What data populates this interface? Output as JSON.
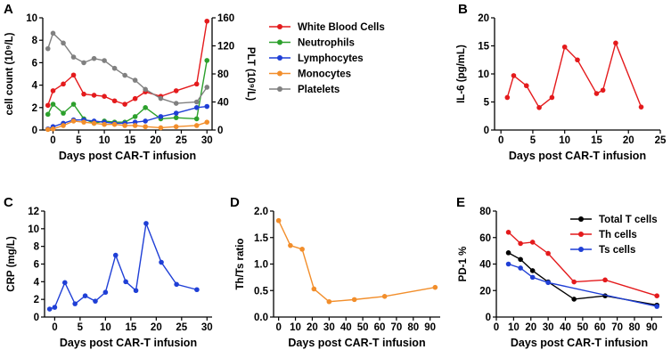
{
  "chart_data": [
    {
      "panel": "A",
      "type": "line",
      "xlabel": "Days post CAR-T infusion",
      "ylabel": "cell count (10⁹/L)",
      "ylabel_right": "PLT (10⁹/L)",
      "xlim": [
        -2,
        31
      ],
      "xticks": [
        "0",
        "5",
        "10",
        "15",
        "20",
        "25",
        "30"
      ],
      "ylim": [
        0,
        10
      ],
      "yticks": [
        "0",
        "2",
        "4",
        "6",
        "8",
        "10"
      ],
      "ylim_right": [
        0,
        160
      ],
      "yticks_right": [
        "0",
        "40",
        "80",
        "120",
        "160"
      ],
      "legend_position": "top-right",
      "x": [
        -1,
        0,
        2,
        4,
        6,
        8,
        10,
        12,
        14,
        16,
        18,
        21,
        24,
        28,
        30
      ],
      "series": [
        {
          "name": "White Blood Cells",
          "color": "#e41a1c",
          "axis": "left",
          "values": [
            2.2,
            3.5,
            4.1,
            4.9,
            3.2,
            3.1,
            3.0,
            2.6,
            2.3,
            2.8,
            3.4,
            3.0,
            3.5,
            4.1,
            9.7
          ]
        },
        {
          "name": "Neutrophils",
          "color": "#2ca02c",
          "axis": "left",
          "values": [
            1.4,
            2.3,
            1.5,
            2.3,
            1.0,
            0.6,
            0.8,
            0.7,
            0.7,
            1.2,
            2.0,
            1.0,
            1.1,
            1.0,
            6.2
          ]
        },
        {
          "name": "Lymphocytes",
          "color": "#1f3fd6",
          "axis": "left",
          "values": [
            0.1,
            0.3,
            0.6,
            0.9,
            0.9,
            0.8,
            0.7,
            0.6,
            0.6,
            0.7,
            0.8,
            1.2,
            1.5,
            2.0,
            2.1
          ]
        },
        {
          "name": "Monocytes",
          "color": "#f28e2b",
          "axis": "left",
          "values": [
            0.05,
            0.1,
            0.4,
            0.8,
            0.7,
            0.6,
            0.5,
            0.5,
            0.4,
            0.4,
            0.3,
            0.2,
            0.3,
            0.4,
            0.7
          ]
        },
        {
          "name": "Platelets",
          "color": "#808080",
          "axis": "right",
          "values": [
            116,
            138,
            124,
            104,
            96,
            102,
            99,
            88,
            78,
            71,
            58,
            45,
            38,
            40,
            61
          ]
        }
      ]
    },
    {
      "panel": "B",
      "type": "line",
      "xlabel": "Days post CAR-T infusion",
      "ylabel": "IL-6 (pg/mL)",
      "xlim": [
        -1,
        25
      ],
      "xticks": [
        "0",
        "5",
        "10",
        "15",
        "20",
        "25"
      ],
      "ylim": [
        0,
        20
      ],
      "yticks": [
        "0",
        "5",
        "10",
        "15",
        "20"
      ],
      "series": [
        {
          "name": "IL-6",
          "color": "#e41a1c",
          "x": [
            1,
            2,
            4,
            6,
            8,
            10,
            12,
            15,
            16,
            18,
            22
          ],
          "values": [
            5.8,
            9.7,
            7.9,
            4.0,
            5.8,
            14.8,
            12.5,
            6.5,
            7.1,
            15.5,
            4.1
          ]
        }
      ]
    },
    {
      "panel": "C",
      "type": "line",
      "xlabel": "Days post CAR-T infusion",
      "ylabel": "CRP (mg/L)",
      "xlim": [
        -2,
        31
      ],
      "xticks": [
        "0",
        "5",
        "10",
        "15",
        "20",
        "25",
        "30"
      ],
      "ylim": [
        0,
        12
      ],
      "yticks": [
        "0",
        "2",
        "4",
        "6",
        "8",
        "10",
        "12"
      ],
      "series": [
        {
          "name": "CRP",
          "color": "#1f3fd6",
          "x": [
            -1,
            0,
            2,
            4,
            6,
            8,
            10,
            12,
            14,
            16,
            18,
            21,
            24,
            28
          ],
          "values": [
            0.9,
            1.1,
            3.9,
            1.5,
            2.4,
            1.8,
            2.8,
            7.0,
            4.0,
            3.0,
            10.6,
            6.2,
            3.7,
            3.1
          ]
        }
      ]
    },
    {
      "panel": "D",
      "type": "line",
      "xlabel": "Days post CAR-T infusion",
      "ylabel": "Th/Ts ratio",
      "xlim": [
        -3,
        96
      ],
      "xticks": [
        "0",
        "10",
        "20",
        "30",
        "40",
        "50",
        "60",
        "70",
        "80",
        "90"
      ],
      "ylim": [
        0,
        2.0
      ],
      "yticks": [
        "0.0",
        "0.5",
        "1.0",
        "1.5",
        "2.0"
      ],
      "series": [
        {
          "name": "Th/Ts ratio",
          "color": "#f28e2b",
          "x": [
            0,
            7,
            14,
            21,
            30,
            45,
            63,
            93
          ],
          "values": [
            1.82,
            1.35,
            1.28,
            0.53,
            0.29,
            0.33,
            0.39,
            0.56
          ]
        }
      ]
    },
    {
      "panel": "E",
      "type": "line",
      "xlabel": "Days post CAR-T infusion",
      "ylabel": "PD-1 %",
      "xlim": [
        0,
        96
      ],
      "xticks": [
        "0",
        "10",
        "20",
        "30",
        "40",
        "50",
        "60",
        "70",
        "80",
        "90"
      ],
      "ylim": [
        0,
        80
      ],
      "yticks": [
        "0",
        "20",
        "40",
        "60",
        "80"
      ],
      "legend_position": "top-right",
      "x": [
        7,
        14,
        21,
        30,
        45,
        63,
        93
      ],
      "series": [
        {
          "name": "Total T cells",
          "color": "#000000",
          "values": [
            48.5,
            43.5,
            35.0,
            26.5,
            13.5,
            16.0,
            9.0
          ]
        },
        {
          "name": "Th cells",
          "color": "#e41a1c",
          "values": [
            64.0,
            55.5,
            56.5,
            48.0,
            26.5,
            28.0,
            16.0
          ]
        },
        {
          "name": "Ts cells",
          "color": "#1f3fd6",
          "values": [
            40.0,
            37.0,
            30.0,
            26.0,
            null,
            null,
            8.0
          ]
        }
      ]
    }
  ]
}
